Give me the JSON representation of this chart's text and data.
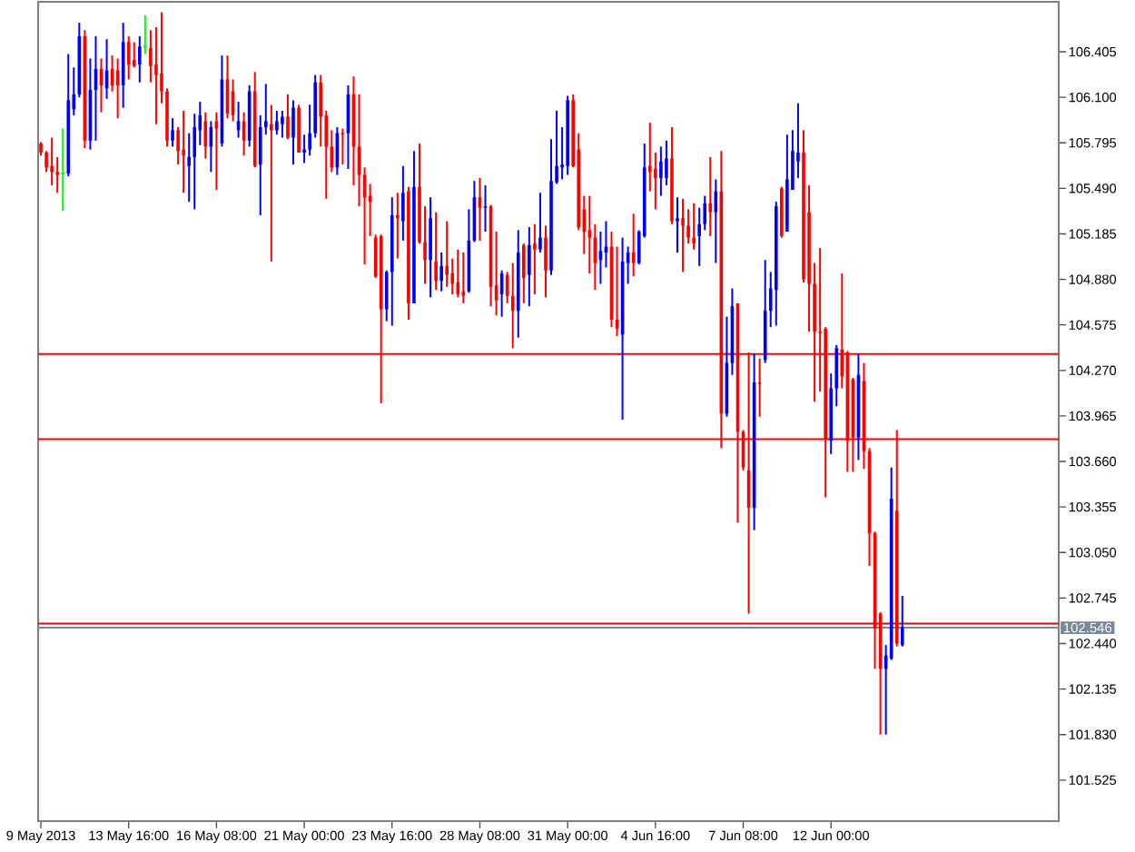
{
  "chart_data": {
    "type": "candlestick",
    "categories": [
      "9 May 2013",
      null,
      null,
      null,
      null,
      null,
      null,
      null,
      null,
      null,
      null,
      null,
      null,
      null,
      null,
      null,
      "13 May 16:00",
      null,
      null,
      null,
      null,
      null,
      null,
      null,
      null,
      null,
      null,
      null,
      null,
      null,
      null,
      null,
      "16 May 08:00",
      null,
      null,
      null,
      null,
      null,
      null,
      null,
      null,
      null,
      null,
      null,
      null,
      null,
      null,
      null,
      "21 May 00:00",
      null,
      null,
      null,
      null,
      null,
      null,
      null,
      null,
      null,
      null,
      null,
      null,
      null,
      null,
      null,
      "23 May 16:00",
      null,
      null,
      null,
      null,
      null,
      null,
      null,
      null,
      null,
      null,
      null,
      null,
      null,
      null,
      null,
      "28 May 08:00",
      null,
      null,
      null,
      null,
      null,
      null,
      null,
      null,
      null,
      null,
      null,
      null,
      null,
      null,
      null,
      "31 May 00:00",
      null,
      null,
      null,
      null,
      null,
      null,
      null,
      null,
      null,
      null,
      null,
      null,
      null,
      null,
      null,
      "4 Jun 16:00",
      null,
      null,
      null,
      null,
      null,
      null,
      null,
      null,
      null,
      null,
      null,
      null,
      null,
      null,
      null,
      "7 Jun 08:00",
      null,
      null,
      null,
      null,
      null,
      null,
      null,
      null,
      null,
      null,
      null,
      null,
      null,
      null,
      null,
      "12 Jun 00:00",
      null,
      null,
      null,
      null,
      null,
      null,
      null,
      null,
      null,
      null,
      null,
      null,
      null,
      null,
      null,
      null,
      null,
      null,
      null,
      null,
      null,
      null,
      null,
      null,
      null,
      null,
      null,
      null,
      null,
      null,
      null,
      null,
      null,
      null,
      null,
      null,
      null,
      null,
      null,
      null,
      null
    ],
    "ohlc": [
      [
        105.79,
        105.8,
        105.71,
        105.73
      ],
      [
        105.73,
        105.74,
        105.6,
        105.63
      ],
      [
        105.64,
        105.83,
        105.51,
        105.6
      ],
      [
        105.6,
        105.7,
        105.46,
        105.58
      ],
      [
        105.59,
        105.89,
        105.34,
        105.59
      ],
      [
        105.59,
        106.39,
        105.57,
        106.08
      ],
      [
        106.02,
        106.3,
        105.98,
        106.12
      ],
      [
        106.12,
        106.6,
        106.1,
        106.51
      ],
      [
        106.51,
        106.55,
        105.76,
        105.81
      ],
      [
        105.81,
        106.36,
        105.75,
        106.15
      ],
      [
        106.15,
        106.51,
        105.81,
        106.29
      ],
      [
        106.29,
        106.36,
        106.0,
        106.18
      ],
      [
        106.16,
        106.49,
        106.09,
        106.28
      ],
      [
        106.29,
        106.38,
        106.14,
        106.18
      ],
      [
        106.28,
        106.36,
        105.96,
        106.18
      ],
      [
        106.18,
        106.6,
        106.03,
        106.47
      ],
      [
        106.47,
        106.51,
        106.22,
        106.32
      ],
      [
        106.35,
        106.47,
        106.3,
        106.31
      ],
      [
        106.32,
        106.51,
        106.2,
        106.44
      ],
      [
        106.44,
        106.65,
        106.39,
        106.44
      ],
      [
        106.43,
        106.55,
        106.2,
        106.31
      ],
      [
        106.32,
        106.57,
        105.92,
        106.25
      ],
      [
        106.26,
        106.67,
        106.06,
        106.14
      ],
      [
        106.14,
        106.16,
        105.77,
        105.81
      ],
      [
        105.81,
        105.96,
        105.77,
        105.88
      ],
      [
        105.88,
        105.9,
        105.65,
        105.74
      ],
      [
        105.75,
        106.01,
        105.46,
        105.71
      ],
      [
        105.64,
        105.86,
        105.4,
        105.7
      ],
      [
        105.7,
        105.99,
        105.35,
        105.9
      ],
      [
        105.88,
        106.07,
        105.78,
        105.98
      ],
      [
        105.94,
        106.0,
        105.69,
        105.77
      ],
      [
        105.77,
        105.94,
        105.6,
        105.9
      ],
      [
        105.94,
        106.0,
        105.48,
        105.89
      ],
      [
        105.79,
        106.38,
        105.77,
        106.22
      ],
      [
        106.22,
        106.38,
        105.96,
        105.99
      ],
      [
        106.14,
        106.22,
        105.94,
        105.98
      ],
      [
        105.88,
        106.07,
        105.83,
        105.94
      ],
      [
        105.94,
        106.0,
        105.71,
        105.81
      ],
      [
        105.81,
        106.18,
        105.77,
        106.14
      ],
      [
        106.14,
        106.27,
        105.63,
        105.64
      ],
      [
        105.65,
        105.98,
        105.31,
        105.9
      ],
      [
        105.9,
        106.19,
        105.85,
        105.94
      ],
      [
        105.92,
        106.05,
        105.0,
        105.88
      ],
      [
        105.88,
        106.01,
        105.85,
        105.94
      ],
      [
        105.92,
        106.01,
        105.83,
        105.97
      ],
      [
        105.97,
        106.12,
        105.82,
        105.83
      ],
      [
        105.83,
        106.08,
        105.65,
        106.03
      ],
      [
        106.03,
        106.05,
        105.73,
        105.73
      ],
      [
        105.73,
        105.85,
        105.66,
        105.75
      ],
      [
        105.75,
        106.05,
        105.71,
        105.86
      ],
      [
        105.86,
        106.25,
        105.83,
        106.2
      ],
      [
        106.2,
        106.25,
        105.77,
        105.97
      ],
      [
        105.98,
        106.01,
        105.42,
        105.77
      ],
      [
        105.77,
        105.88,
        105.6,
        105.63
      ],
      [
        105.63,
        105.9,
        105.58,
        105.86
      ],
      [
        105.86,
        105.89,
        105.65,
        105.85
      ],
      [
        105.86,
        106.18,
        105.62,
        106.12
      ],
      [
        106.12,
        106.24,
        105.51,
        105.77
      ],
      [
        105.77,
        106.12,
        105.37,
        105.58
      ],
      [
        105.58,
        105.63,
        104.98,
        105.43
      ],
      [
        105.44,
        105.52,
        105.17,
        105.4
      ],
      [
        105.16,
        105.18,
        104.89,
        104.9
      ],
      [
        105.17,
        105.18,
        104.05,
        104.68
      ],
      [
        104.68,
        104.94,
        104.6,
        104.93
      ],
      [
        104.93,
        105.43,
        104.57,
        105.31
      ],
      [
        105.31,
        105.46,
        105.02,
        105.29
      ],
      [
        105.27,
        105.64,
        105.14,
        105.46
      ],
      [
        105.47,
        105.5,
        104.61,
        104.72
      ],
      [
        104.72,
        105.74,
        104.72,
        105.5
      ],
      [
        105.5,
        105.79,
        105.12,
        105.13
      ],
      [
        105.13,
        105.37,
        104.85,
        105.01
      ],
      [
        105.01,
        105.43,
        104.76,
        105.29
      ],
      [
        105.0,
        105.33,
        104.81,
        104.87
      ],
      [
        104.87,
        105.06,
        104.8,
        104.97
      ],
      [
        104.97,
        105.27,
        104.83,
        104.91
      ],
      [
        104.92,
        105.02,
        104.78,
        104.85
      ],
      [
        104.86,
        105.08,
        104.76,
        104.78
      ],
      [
        104.8,
        105.06,
        104.72,
        104.77
      ],
      [
        104.8,
        105.35,
        104.79,
        105.14
      ],
      [
        105.14,
        105.54,
        105.13,
        105.43
      ],
      [
        105.43,
        105.56,
        105.14,
        105.36
      ],
      [
        105.36,
        105.51,
        105.2,
        105.37
      ],
      [
        105.37,
        105.38,
        104.7,
        104.83
      ],
      [
        104.84,
        105.2,
        104.64,
        104.74
      ],
      [
        104.78,
        104.94,
        104.63,
        104.92
      ],
      [
        104.91,
        104.93,
        104.72,
        104.77
      ],
      [
        104.77,
        104.99,
        104.42,
        104.67
      ],
      [
        104.67,
        105.21,
        104.49,
        105.06
      ],
      [
        105.11,
        105.12,
        104.72,
        104.89
      ],
      [
        104.91,
        105.23,
        104.7,
        105.11
      ],
      [
        105.12,
        105.25,
        104.78,
        105.08
      ],
      [
        105.08,
        105.46,
        105.06,
        105.16
      ],
      [
        105.16,
        105.24,
        104.76,
        104.94
      ],
      [
        104.94,
        105.82,
        104.91,
        105.54
      ],
      [
        105.53,
        106.01,
        105.52,
        105.64
      ],
      [
        105.63,
        105.9,
        105.55,
        105.65
      ],
      [
        105.64,
        106.11,
        105.58,
        106.08
      ],
      [
        106.08,
        106.12,
        105.63,
        105.64
      ],
      [
        105.75,
        105.86,
        105.21,
        105.23
      ],
      [
        105.35,
        105.44,
        105.05,
        105.2
      ],
      [
        105.21,
        105.44,
        104.92,
        105.16
      ],
      [
        105.16,
        105.25,
        104.81,
        104.99
      ],
      [
        105.01,
        105.2,
        104.85,
        105.07
      ],
      [
        105.06,
        105.27,
        104.96,
        105.1
      ],
      [
        105.1,
        105.2,
        104.56,
        104.61
      ],
      [
        104.61,
        105.1,
        104.5,
        104.55
      ],
      [
        104.51,
        105.16,
        103.94,
        105.0
      ],
      [
        104.99,
        105.1,
        104.85,
        105.06
      ],
      [
        105.06,
        105.32,
        104.9,
        104.99
      ],
      [
        104.99,
        105.21,
        104.98,
        105.2
      ],
      [
        105.17,
        105.79,
        105.16,
        105.63
      ],
      [
        105.64,
        105.93,
        105.47,
        105.6
      ],
      [
        105.62,
        105.73,
        105.35,
        105.56
      ],
      [
        105.56,
        105.77,
        105.44,
        105.67
      ],
      [
        105.56,
        105.81,
        105.51,
        105.69
      ],
      [
        105.69,
        105.9,
        105.25,
        105.27
      ],
      [
        105.27,
        105.43,
        105.06,
        105.29
      ],
      [
        105.29,
        105.42,
        104.93,
        105.24
      ],
      [
        105.24,
        105.35,
        105.12,
        105.16
      ],
      [
        105.16,
        105.39,
        105.08,
        105.12
      ],
      [
        105.17,
        105.36,
        104.97,
        105.25
      ],
      [
        105.25,
        105.44,
        105.21,
        105.39
      ],
      [
        105.39,
        105.7,
        105.17,
        105.33
      ],
      [
        105.33,
        105.55,
        104.99,
        105.47
      ],
      [
        105.47,
        105.74,
        103.75,
        103.98
      ],
      [
        103.98,
        104.63,
        103.96,
        104.32
      ],
      [
        104.32,
        104.82,
        104.24,
        104.7
      ],
      [
        104.72,
        104.72,
        103.25,
        103.86
      ],
      [
        103.86,
        103.87,
        103.6,
        103.62
      ],
      [
        103.6,
        104.39,
        102.64,
        103.35
      ],
      [
        103.35,
        104.38,
        103.2,
        104.19
      ],
      [
        104.19,
        104.35,
        103.96,
        104.18
      ],
      [
        104.34,
        105.01,
        104.32,
        104.67
      ],
      [
        104.67,
        104.93,
        104.56,
        104.82
      ],
      [
        104.81,
        105.4,
        104.57,
        105.37
      ],
      [
        105.49,
        105.5,
        105.16,
        105.17
      ],
      [
        105.2,
        105.85,
        105.2,
        105.55
      ],
      [
        105.48,
        105.88,
        105.48,
        105.74
      ],
      [
        105.67,
        106.06,
        105.56,
        105.73
      ],
      [
        105.73,
        105.88,
        104.86,
        104.88
      ],
      [
        105.33,
        105.51,
        104.53,
        104.85
      ],
      [
        104.85,
        104.99,
        104.06,
        104.53
      ],
      [
        104.53,
        105.09,
        104.13,
        104.52
      ],
      [
        104.55,
        104.56,
        103.42,
        103.81
      ],
      [
        103.8,
        104.25,
        103.71,
        104.15
      ],
      [
        104.15,
        104.44,
        104.03,
        104.42
      ],
      [
        104.41,
        104.92,
        104.15,
        104.23
      ],
      [
        104.39,
        104.4,
        103.59,
        103.8
      ],
      [
        104.21,
        104.22,
        103.59,
        103.82
      ],
      [
        103.82,
        104.38,
        103.67,
        104.24
      ],
      [
        104.2,
        104.32,
        103.61,
        103.73
      ],
      [
        103.73,
        103.75,
        102.96,
        103.18
      ],
      [
        103.18,
        103.19,
        102.27,
        102.54
      ],
      [
        102.64,
        102.65,
        101.83,
        102.27
      ],
      [
        102.27,
        102.43,
        101.83,
        102.36
      ],
      [
        102.34,
        103.62,
        102.33,
        103.41
      ],
      [
        103.33,
        103.87,
        102.42,
        102.44
      ],
      [
        102.43,
        102.76,
        102.42,
        102.55
      ],
      null,
      null,
      null,
      null,
      null,
      null,
      null,
      null,
      null,
      null,
      null,
      null,
      null,
      null,
      null,
      null,
      null,
      null,
      null,
      null,
      null,
      null,
      null,
      null,
      null,
      null,
      null,
      null
    ],
    "colors": [
      "#ff0000",
      "#ff0000",
      "#ff0000",
      "#ff0000",
      "#00ff00",
      "#0000ff",
      "#0000ff",
      "#0000ff",
      "#ff0000",
      "#0000ff",
      "#0000ff",
      "#ff0000",
      "#0000ff",
      "#ff0000",
      "#ff0000",
      "#0000ff",
      "#ff0000",
      "#ff0000",
      "#0000ff",
      "#00ff00",
      "#ff0000",
      "#ff0000",
      "#ff0000",
      "#ff0000",
      "#0000ff",
      "#ff0000",
      "#ff0000",
      "#0000ff",
      "#0000ff",
      "#0000ff",
      "#ff0000",
      "#0000ff",
      "#ff0000",
      "#0000ff",
      "#ff0000",
      "#ff0000",
      "#0000ff",
      "#ff0000",
      "#0000ff",
      "#ff0000",
      "#0000ff",
      "#0000ff",
      "#ff0000",
      "#0000ff",
      "#0000ff",
      "#ff0000",
      "#0000ff",
      "#ff0000",
      "#0000ff",
      "#0000ff",
      "#0000ff",
      "#ff0000",
      "#ff0000",
      "#ff0000",
      "#0000ff",
      "#ff0000",
      "#0000ff",
      "#ff0000",
      "#ff0000",
      "#ff0000",
      "#ff0000",
      "#ff0000",
      "#ff0000",
      "#0000ff",
      "#0000ff",
      "#ff0000",
      "#0000ff",
      "#ff0000",
      "#0000ff",
      "#ff0000",
      "#ff0000",
      "#0000ff",
      "#ff0000",
      "#0000ff",
      "#ff0000",
      "#ff0000",
      "#ff0000",
      "#ff0000",
      "#0000ff",
      "#0000ff",
      "#ff0000",
      "#0000ff",
      "#ff0000",
      "#ff0000",
      "#0000ff",
      "#ff0000",
      "#ff0000",
      "#0000ff",
      "#ff0000",
      "#0000ff",
      "#ff0000",
      "#0000ff",
      "#ff0000",
      "#0000ff",
      "#0000ff",
      "#0000ff",
      "#0000ff",
      "#ff0000",
      "#ff0000",
      "#ff0000",
      "#ff0000",
      "#ff0000",
      "#0000ff",
      "#0000ff",
      "#ff0000",
      "#ff0000",
      "#0000ff",
      "#0000ff",
      "#ff0000",
      "#0000ff",
      "#0000ff",
      "#ff0000",
      "#ff0000",
      "#0000ff",
      "#0000ff",
      "#ff0000",
      "#0000ff",
      "#ff0000",
      "#ff0000",
      "#ff0000",
      "#0000ff",
      "#0000ff",
      "#ff0000",
      "#0000ff",
      "#ff0000",
      "#0000ff",
      "#0000ff",
      "#ff0000",
      "#ff0000",
      "#ff0000",
      "#0000ff",
      "#ff0000",
      "#0000ff",
      "#0000ff",
      "#0000ff",
      "#ff0000",
      "#0000ff",
      "#0000ff",
      "#0000ff",
      "#ff0000",
      "#ff0000",
      "#ff0000",
      "#ff0000",
      "#ff0000",
      "#0000ff",
      "#0000ff",
      "#ff0000",
      "#ff0000",
      "#ff0000",
      "#0000ff",
      "#ff0000",
      "#ff0000",
      "#ff0000",
      "#ff0000",
      "#0000ff",
      "#0000ff",
      "#ff0000",
      "#0000ff",
      null,
      null,
      null,
      null,
      null,
      null,
      null,
      null,
      null,
      null,
      null,
      null,
      null,
      null,
      null,
      null,
      null,
      null,
      null,
      null,
      null,
      null,
      null,
      null,
      null,
      null,
      null,
      null
    ],
    "ylim": [
      101.25,
      106.74
    ],
    "yticks": [
      101.525,
      {
        "value": 101.83,
        "label": "101.830"
      },
      102.135,
      {
        "value": 102.44,
        "label": "102.440"
      },
      102.745,
      {
        "value": 103.05,
        "label": "103.050"
      },
      103.355,
      {
        "value": 103.66,
        "label": "103.660"
      },
      103.965,
      {
        "value": 104.27,
        "label": "104.270"
      },
      104.575,
      {
        "value": 104.88,
        "label": "104.880"
      },
      105.185,
      {
        "value": 105.49,
        "label": "105.490"
      },
      105.795,
      {
        "value": 106.1,
        "label": "106.100"
      },
      106.405
    ],
    "ref_lines": [
      {
        "axis": "y",
        "value": 102.546,
        "label": "102.546",
        "color": "#778899"
      },
      {
        "axis": "y",
        "value": 102.574,
        "color": "#ff0000"
      },
      {
        "axis": "y",
        "value": 104.38,
        "color": "#ff0000"
      },
      {
        "axis": "y",
        "value": 103.81,
        "color": "#ff0000"
      }
    ]
  }
}
